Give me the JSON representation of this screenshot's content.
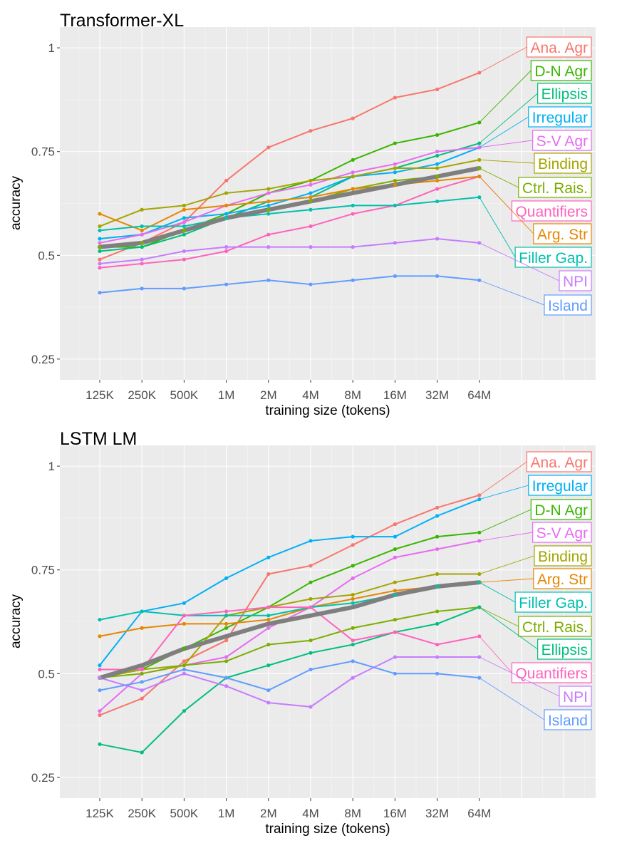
{
  "chart_data": [
    {
      "type": "line",
      "title": "Transformer-XL",
      "xlabel": "training size (tokens)",
      "ylabel": "accuracy",
      "categories": [
        "125K",
        "250K",
        "500K",
        "1M",
        "2M",
        "4M",
        "8M",
        "16M",
        "32M",
        "64M"
      ],
      "yticks": [
        "0.25",
        "0.5",
        "0.75",
        "1"
      ],
      "ytick_values": [
        0.25,
        0.5,
        0.75,
        1.0
      ],
      "ylim": [
        0.25,
        1.0
      ],
      "grid": true,
      "legend": "direct labels at right",
      "series": [
        {
          "name": "Ana. Agr",
          "color": "#F8766D",
          "values": [
            0.49,
            0.53,
            0.58,
            0.68,
            0.76,
            0.8,
            0.83,
            0.88,
            0.9,
            0.94
          ]
        },
        {
          "name": "D-N Agr",
          "color": "#39B600",
          "values": [
            0.52,
            0.52,
            0.56,
            0.6,
            0.65,
            0.68,
            0.73,
            0.77,
            0.79,
            0.82
          ]
        },
        {
          "name": "Ellipsis",
          "color": "#00BF7D",
          "values": [
            0.51,
            0.52,
            0.55,
            0.59,
            0.63,
            0.64,
            0.69,
            0.71,
            0.74,
            0.77
          ]
        },
        {
          "name": "Irregular",
          "color": "#00B0F6",
          "values": [
            0.54,
            0.55,
            0.59,
            0.6,
            0.62,
            0.65,
            0.69,
            0.7,
            0.72,
            0.76
          ]
        },
        {
          "name": "S-V Agr",
          "color": "#E76BF3",
          "values": [
            0.53,
            0.55,
            0.58,
            0.62,
            0.65,
            0.67,
            0.7,
            0.72,
            0.75,
            0.76
          ]
        },
        {
          "name": "Binding",
          "color": "#A3A500",
          "values": [
            0.57,
            0.61,
            0.62,
            0.65,
            0.66,
            0.68,
            0.69,
            0.71,
            0.71,
            0.73
          ]
        },
        {
          "name": "Ctrl. Rais.",
          "color": "#7CAE00",
          "values": [
            0.52,
            0.53,
            0.56,
            0.59,
            0.61,
            0.63,
            0.66,
            0.68,
            0.69,
            0.71
          ]
        },
        {
          "name": "Quantifiers",
          "color": "#FF62BC",
          "values": [
            0.47,
            0.48,
            0.49,
            0.51,
            0.55,
            0.57,
            0.6,
            0.62,
            0.66,
            0.69
          ]
        },
        {
          "name": "Arg. Str",
          "color": "#E58700",
          "values": [
            0.6,
            0.56,
            0.61,
            0.62,
            0.63,
            0.64,
            0.66,
            0.67,
            0.68,
            0.69
          ]
        },
        {
          "name": "Filler Gap.",
          "color": "#00C0AF",
          "values": [
            0.56,
            0.57,
            0.57,
            0.59,
            0.6,
            0.61,
            0.62,
            0.62,
            0.63,
            0.64
          ]
        },
        {
          "name": "NPI",
          "color": "#C77CFF",
          "values": [
            0.48,
            0.49,
            0.51,
            0.52,
            0.52,
            0.52,
            0.52,
            0.53,
            0.54,
            0.53
          ]
        },
        {
          "name": "Island",
          "color": "#619CFF",
          "values": [
            0.41,
            0.42,
            0.42,
            0.43,
            0.44,
            0.43,
            0.44,
            0.45,
            0.45,
            0.44
          ]
        }
      ],
      "average": {
        "color": "#7F7F7F",
        "values": [
          0.52,
          0.53,
          0.56,
          0.59,
          0.61,
          0.63,
          0.65,
          0.67,
          0.69,
          0.71
        ]
      }
    },
    {
      "type": "line",
      "title": "LSTM LM",
      "xlabel": "training size (tokens)",
      "ylabel": "accuracy",
      "categories": [
        "125K",
        "250K",
        "500K",
        "1M",
        "2M",
        "4M",
        "8M",
        "16M",
        "32M",
        "64M"
      ],
      "yticks": [
        "0.25",
        "0.5",
        "0.75",
        "1"
      ],
      "ytick_values": [
        0.25,
        0.5,
        0.75,
        1.0
      ],
      "ylim": [
        0.25,
        1.0
      ],
      "grid": true,
      "legend": "direct labels at right",
      "series": [
        {
          "name": "Ana. Agr",
          "color": "#F8766D",
          "values": [
            0.4,
            0.44,
            0.53,
            0.58,
            0.74,
            0.76,
            0.81,
            0.86,
            0.9,
            0.93
          ]
        },
        {
          "name": "Irregular",
          "color": "#00B0F6",
          "values": [
            0.52,
            0.65,
            0.67,
            0.73,
            0.78,
            0.82,
            0.83,
            0.83,
            0.88,
            0.92
          ]
        },
        {
          "name": "D-N Agr",
          "color": "#39B600",
          "values": [
            0.49,
            0.51,
            0.56,
            0.61,
            0.66,
            0.72,
            0.76,
            0.8,
            0.83,
            0.84
          ]
        },
        {
          "name": "S-V Agr",
          "color": "#E76BF3",
          "values": [
            0.41,
            0.5,
            0.52,
            0.54,
            0.61,
            0.66,
            0.73,
            0.78,
            0.8,
            0.82
          ]
        },
        {
          "name": "Binding",
          "color": "#A3A500",
          "values": [
            0.49,
            0.51,
            0.52,
            0.64,
            0.66,
            0.68,
            0.69,
            0.72,
            0.74,
            0.74
          ]
        },
        {
          "name": "Arg. Str",
          "color": "#E58700",
          "values": [
            0.59,
            0.61,
            0.62,
            0.62,
            0.63,
            0.66,
            0.68,
            0.7,
            0.71,
            0.72
          ]
        },
        {
          "name": "Filler Gap.",
          "color": "#00C0AF",
          "values": [
            0.63,
            0.65,
            0.64,
            0.64,
            0.64,
            0.66,
            0.67,
            0.69,
            0.71,
            0.72
          ]
        },
        {
          "name": "Ctrl. Rais.",
          "color": "#7CAE00",
          "values": [
            0.49,
            0.5,
            0.52,
            0.53,
            0.57,
            0.58,
            0.61,
            0.63,
            0.65,
            0.66
          ]
        },
        {
          "name": "Ellipsis",
          "color": "#00BF7D",
          "values": [
            0.33,
            0.31,
            0.41,
            0.49,
            0.52,
            0.55,
            0.57,
            0.6,
            0.62,
            0.66
          ]
        },
        {
          "name": "Quantifiers",
          "color": "#FF62BC",
          "values": [
            0.51,
            0.51,
            0.64,
            0.65,
            0.66,
            0.66,
            0.58,
            0.6,
            0.57,
            0.59
          ]
        },
        {
          "name": "NPI",
          "color": "#C77CFF",
          "values": [
            0.49,
            0.46,
            0.5,
            0.47,
            0.43,
            0.42,
            0.49,
            0.54,
            0.54,
            0.54
          ]
        },
        {
          "name": "Island",
          "color": "#619CFF",
          "values": [
            0.46,
            0.48,
            0.51,
            0.49,
            0.46,
            0.51,
            0.53,
            0.5,
            0.5,
            0.49
          ]
        }
      ],
      "average": {
        "color": "#7F7F7F",
        "values": [
          0.49,
          0.52,
          0.56,
          0.59,
          0.62,
          0.64,
          0.66,
          0.69,
          0.71,
          0.72
        ]
      }
    }
  ]
}
